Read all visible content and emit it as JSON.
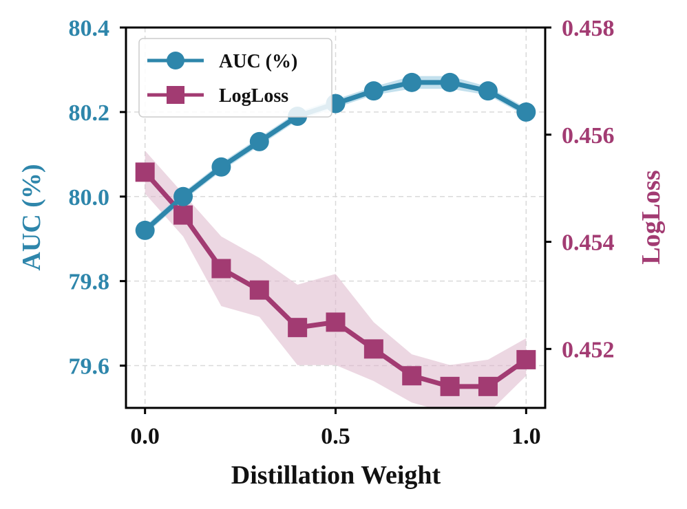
{
  "chart_data": {
    "type": "line",
    "title": "",
    "xlabel": "Distillation Weight",
    "xlim": [
      -0.05,
      1.05
    ],
    "x_ticks": [
      "0.0",
      "0.5",
      "1.0"
    ],
    "x_tick_values": [
      0.0,
      0.5,
      1.0
    ],
    "grid": true,
    "legend_position": "top-left",
    "x": [
      0.0,
      0.1,
      0.2,
      0.3,
      0.4,
      0.5,
      0.6,
      0.7,
      0.8,
      0.9,
      1.0
    ],
    "left_axis": {
      "label": "AUC (%)",
      "ylim": [
        79.5,
        80.4
      ],
      "ticks": [
        "79.6",
        "79.8",
        "80.0",
        "80.2",
        "80.4"
      ],
      "tick_values": [
        79.6,
        79.8,
        80.0,
        80.2,
        80.4
      ],
      "color": "#2e86ab"
    },
    "right_axis": {
      "label": "LogLoss",
      "ylim": [
        0.4509,
        0.458
      ],
      "ticks": [
        "0.452",
        "0.454",
        "0.456",
        "0.458"
      ],
      "tick_values": [
        0.452,
        0.454,
        0.456,
        0.458
      ],
      "color": "#a23b72"
    },
    "series": [
      {
        "name": "AUC (%)",
        "axis": "left",
        "marker": "circle",
        "color": "#2e86ab",
        "band_color": "#a9d3e6",
        "values": [
          79.92,
          80.0,
          80.07,
          80.13,
          80.19,
          80.22,
          80.25,
          80.27,
          80.27,
          80.25,
          80.2
        ],
        "band_lower": [
          79.91,
          79.99,
          80.06,
          80.12,
          80.18,
          80.21,
          80.24,
          80.255,
          80.255,
          80.24,
          80.19
        ],
        "band_upper": [
          79.93,
          80.01,
          80.08,
          80.14,
          80.2,
          80.23,
          80.26,
          80.285,
          80.285,
          80.26,
          80.21
        ]
      },
      {
        "name": "LogLoss",
        "axis": "right",
        "marker": "square",
        "color": "#a23b72",
        "band_color": "#dcb6cb",
        "values": [
          0.4553,
          0.4545,
          0.4535,
          0.4531,
          0.4524,
          0.4525,
          0.452,
          0.4515,
          0.4513,
          0.4513,
          0.4518
        ],
        "band_lower": [
          0.4549,
          0.4541,
          0.4528,
          0.4526,
          0.4517,
          0.4517,
          0.4514,
          0.451,
          0.4508,
          0.4508,
          0.4515
        ],
        "band_upper": [
          0.4557,
          0.4549,
          0.4541,
          0.4537,
          0.4532,
          0.4534,
          0.4525,
          0.4519,
          0.4517,
          0.4518,
          0.4522
        ]
      }
    ]
  }
}
